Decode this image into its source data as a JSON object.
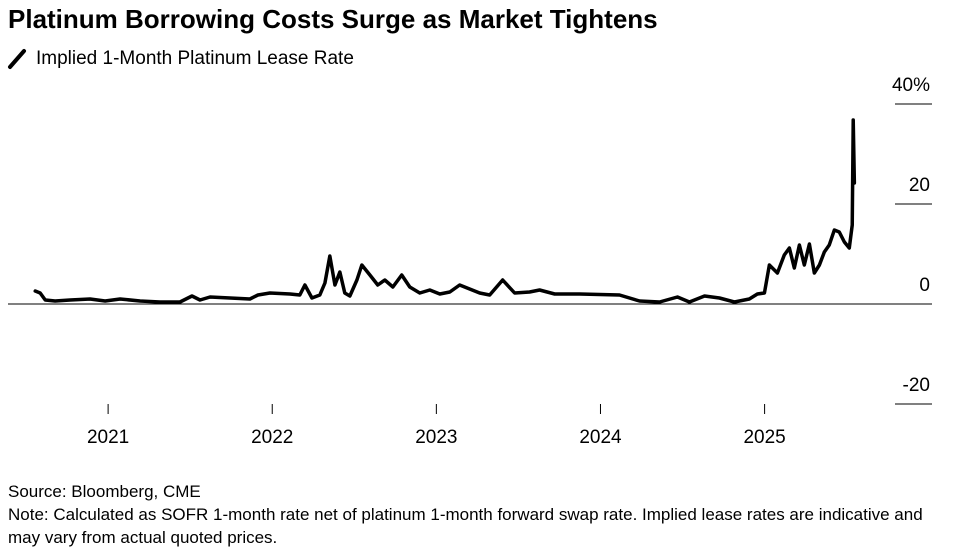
{
  "chart_data": {
    "type": "line",
    "title": "Platinum Borrowing Costs Surge as Market Tightens",
    "source": "Source: Bloomberg, CME",
    "note": "Note: Calculated as SOFR 1-month rate net of platinum 1-month forward swap rate. Implied lease rates are indicative and may vary from actual quoted prices.",
    "x": [
      2020.556,
      2020.586,
      2020.617,
      2020.677,
      2020.769,
      2020.89,
      2020.982,
      2021.073,
      2021.195,
      2021.316,
      2021.438,
      2021.511,
      2021.56,
      2021.621,
      2021.743,
      2021.864,
      2021.913,
      2021.986,
      2022.108,
      2022.168,
      2022.199,
      2022.242,
      2022.29,
      2022.321,
      2022.351,
      2022.382,
      2022.412,
      2022.442,
      2022.473,
      2022.516,
      2022.546,
      2022.595,
      2022.643,
      2022.686,
      2022.735,
      2022.789,
      2022.838,
      2022.899,
      2022.96,
      2023.021,
      2023.082,
      2023.142,
      2023.203,
      2023.264,
      2023.325,
      2023.404,
      2023.477,
      2023.568,
      2023.629,
      2023.721,
      2023.873,
      2024.116,
      2024.238,
      2024.36,
      2024.469,
      2024.542,
      2024.634,
      2024.725,
      2024.816,
      2024.907,
      2024.956,
      2024.999,
      2025.029,
      2025.078,
      2025.12,
      2025.151,
      2025.181,
      2025.212,
      2025.242,
      2025.273,
      2025.303,
      2025.334,
      2025.364,
      2025.394,
      2025.425,
      2025.455,
      2025.486,
      2025.516,
      2025.534,
      2025.54,
      2025.547
    ],
    "series": [
      {
        "name": "Implied 1-Month Platinum Lease Rate",
        "color": "#000000",
        "values": [
          2.6,
          2.2,
          0.8,
          0.6,
          0.8,
          1,
          0.6,
          1,
          0.6,
          0.4,
          0.4,
          1.6,
          0.8,
          1.4,
          1.2,
          1,
          1.8,
          2.2,
          2,
          1.8,
          3.8,
          1.2,
          1.8,
          4.2,
          9.6,
          3.8,
          6.4,
          2.2,
          1.6,
          4.8,
          7.8,
          5.8,
          3.8,
          4.8,
          3.4,
          5.8,
          3.4,
          2.2,
          2.8,
          2,
          2.4,
          3.8,
          3,
          2.2,
          1.8,
          4.8,
          2.2,
          2.4,
          2.8,
          2,
          2,
          1.8,
          0.6,
          0.4,
          1.4,
          0.4,
          1.6,
          1.2,
          0.4,
          1,
          2,
          2.2,
          7.8,
          6.2,
          9.8,
          11.2,
          7.2,
          11.8,
          7.8,
          12,
          6.2,
          7.8,
          10.4,
          11.8,
          14.8,
          14.4,
          12.4,
          11.2,
          15.8,
          36.8,
          24.2
        ]
      }
    ],
    "xlim": [
      2020.39,
      2026.02
    ],
    "xticks": [
      2021,
      2022,
      2023,
      2024,
      2025
    ],
    "ylim": [
      -20,
      40
    ],
    "yticks": [
      {
        "value": 40,
        "label": "40%"
      },
      20,
      0,
      -20
    ]
  }
}
